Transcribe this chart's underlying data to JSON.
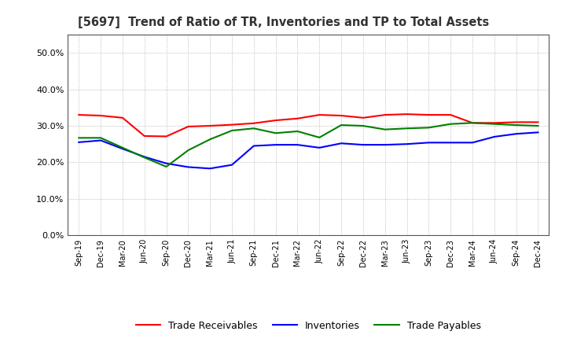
{
  "title": "[5697]  Trend of Ratio of TR, Inventories and TP to Total Assets",
  "x_labels": [
    "Sep-19",
    "Dec-19",
    "Mar-20",
    "Jun-20",
    "Sep-20",
    "Dec-20",
    "Mar-21",
    "Jun-21",
    "Sep-21",
    "Dec-21",
    "Mar-22",
    "Jun-22",
    "Sep-22",
    "Dec-22",
    "Mar-23",
    "Jun-23",
    "Sep-23",
    "Dec-23",
    "Mar-24",
    "Jun-24",
    "Sep-24",
    "Dec-24"
  ],
  "trade_receivables": [
    0.33,
    0.328,
    0.322,
    0.272,
    0.271,
    0.298,
    0.3,
    0.303,
    0.307,
    0.315,
    0.32,
    0.33,
    0.328,
    0.322,
    0.33,
    0.332,
    0.33,
    0.33,
    0.308,
    0.308,
    0.31,
    0.31
  ],
  "inventories": [
    0.255,
    0.26,
    0.237,
    0.215,
    0.197,
    0.187,
    0.183,
    0.193,
    0.245,
    0.248,
    0.248,
    0.24,
    0.252,
    0.248,
    0.248,
    0.25,
    0.254,
    0.254,
    0.254,
    0.27,
    0.278,
    0.282
  ],
  "trade_payables": [
    0.267,
    0.267,
    0.24,
    0.213,
    0.188,
    0.233,
    0.263,
    0.287,
    0.293,
    0.28,
    0.285,
    0.268,
    0.302,
    0.3,
    0.29,
    0.293,
    0.295,
    0.305,
    0.308,
    0.305,
    0.302,
    0.3
  ],
  "ylim": [
    0.0,
    0.55
  ],
  "yticks": [
    0.0,
    0.1,
    0.2,
    0.3,
    0.4,
    0.5
  ],
  "color_tr": "#ff0000",
  "color_inv": "#0000ff",
  "color_tp": "#008000",
  "legend_labels": [
    "Trade Receivables",
    "Inventories",
    "Trade Payables"
  ],
  "bg_color": "#ffffff",
  "grid_color": "#aaaaaa"
}
